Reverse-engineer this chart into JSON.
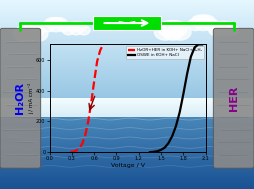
{
  "xlabel": "Voltage / V",
  "ylabel": "j / mA cm⁻²",
  "xlim": [
    0.0,
    2.1
  ],
  "ylim": [
    0,
    700
  ],
  "yticks": [
    0,
    200,
    400,
    600
  ],
  "xticks": [
    0.0,
    0.3,
    0.6,
    0.9,
    1.2,
    1.5,
    1.8,
    2.1
  ],
  "xtick_labels": [
    "0.0",
    "0.3",
    "0.6",
    "0.9",
    "1.2",
    "1.5",
    "1.8",
    "2.1"
  ],
  "red_curve_x": [
    0.28,
    0.32,
    0.36,
    0.4,
    0.44,
    0.48,
    0.52,
    0.56,
    0.6,
    0.64,
    0.68,
    0.72
  ],
  "red_curve_y": [
    0,
    3,
    10,
    25,
    55,
    110,
    200,
    320,
    460,
    590,
    660,
    700
  ],
  "black_curve_x": [
    1.35,
    1.4,
    1.45,
    1.5,
    1.55,
    1.6,
    1.65,
    1.7,
    1.75,
    1.8,
    1.85,
    1.9,
    1.95,
    2.0,
    2.05
  ],
  "black_curve_y": [
    0,
    2,
    6,
    15,
    30,
    60,
    105,
    170,
    260,
    380,
    510,
    620,
    680,
    700,
    710
  ],
  "legend_red": "HzOR+HER in KOH+ NaCl+N₂H₄",
  "legend_black": "OSWE in KOH+ NaCl",
  "green_wire_color": "#00dd00",
  "left_label": "H₂OR",
  "right_label": "HER",
  "left_label_color": "#0000ee",
  "right_label_color": "#880088",
  "sky_top": "#aaddf0",
  "sky_bottom": "#c8eef8",
  "horizon_color": "#e8f8ff",
  "water_top": "#3a8abf",
  "water_bottom": "#1a5a9a",
  "rock_color": "#8a8a8a",
  "rock_edge": "#555555"
}
